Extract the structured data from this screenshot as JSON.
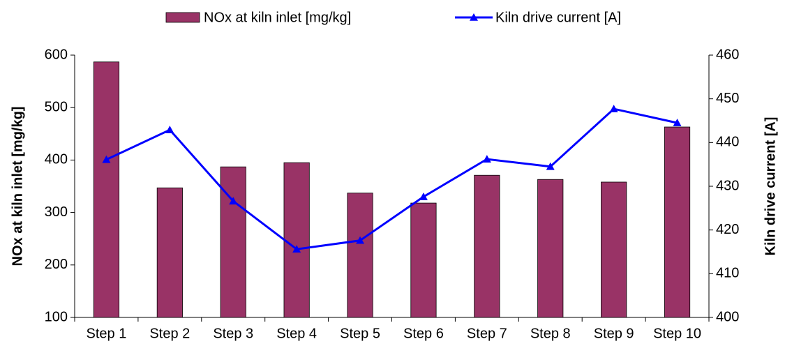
{
  "chart_data": {
    "type": "bar-line",
    "categories": [
      "Step 1",
      "Step 2",
      "Step 3",
      "Step 4",
      "Step 5",
      "Step 6",
      "Step 7",
      "Step 8",
      "Step 9",
      "Step 10"
    ],
    "series": [
      {
        "name": "NOx at kiln inlet [mg/kg]",
        "type": "bar",
        "color": "#993366",
        "values": [
          587,
          347,
          387,
          395,
          337,
          318,
          371,
          363,
          358,
          463
        ]
      },
      {
        "name": "Kiln drive current [A]",
        "type": "line",
        "axis": "y2",
        "color": "#0000ff",
        "values": [
          436.1,
          442.9,
          426.6,
          415.6,
          417.6,
          427.6,
          436.2,
          434.5,
          447.7,
          444.5
        ]
      }
    ],
    "ylabel": "NOx at kiln inlet [mg/kg]",
    "y2label": "Kiln drive current [A]",
    "ylim": [
      100,
      600
    ],
    "yticks": [
      100,
      200,
      300,
      400,
      500,
      600
    ],
    "y2lim": [
      400,
      460
    ],
    "y2ticks": [
      400,
      410,
      420,
      430,
      440,
      450,
      460
    ],
    "legend": "top",
    "grid": false
  }
}
